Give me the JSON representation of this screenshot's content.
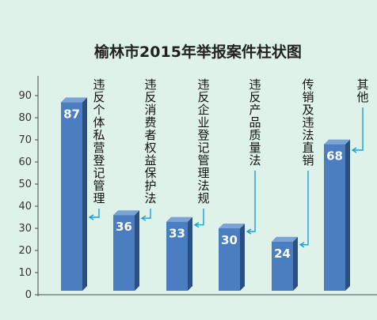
{
  "chart_data": {
    "type": "bar",
    "title": "榆林市2015年举报案件柱状图",
    "categories": [
      "违反个体私营登记管理",
      "违反消费者权益保护法",
      "违反企业登记管理法规",
      "违反产品质量法",
      "传销及违法直销",
      "其他"
    ],
    "values": [
      87,
      36,
      33,
      30,
      24,
      68
    ],
    "ylim": [
      0,
      90
    ],
    "yticks": [
      0,
      10,
      20,
      30,
      40,
      50,
      60,
      70,
      80,
      90
    ],
    "xlabel": "",
    "ylabel": "",
    "grid": false,
    "colors": {
      "bar": "#4a7ec0",
      "bar_side": "#2a4f82",
      "bar_top": "#7aa3d6",
      "leader": "#1a9fd6",
      "background": "#dff2ea"
    }
  }
}
